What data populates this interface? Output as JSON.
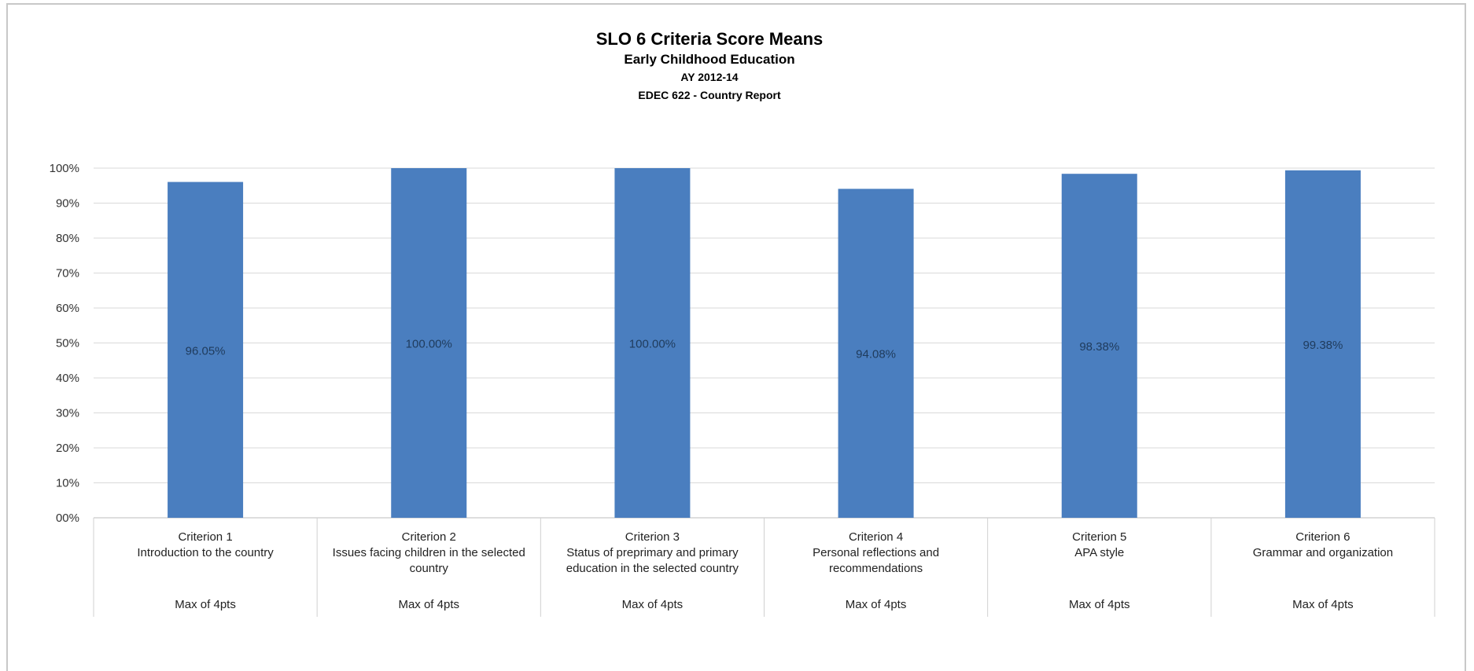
{
  "chart_data": {
    "type": "bar",
    "title": "SLO 6 Criteria Score Means",
    "subtitles": [
      "Early Childhood Education",
      "AY 2012-14",
      "EDEC 622 - Country Report"
    ],
    "ylim": [
      0,
      100
    ],
    "y_ticks": [
      "00%",
      "10%",
      "20%",
      "30%",
      "40%",
      "50%",
      "60%",
      "70%",
      "80%",
      "90%",
      "100%"
    ],
    "grid": true,
    "bar_color": "#4a7ebf",
    "categories": [
      {
        "criterion": "Criterion 1",
        "description": "Introduction to the country",
        "max": "Max of 4pts"
      },
      {
        "criterion": "Criterion 2",
        "description": "Issues facing children in the selected country",
        "max": "Max of 4pts"
      },
      {
        "criterion": "Criterion 3",
        "description": "Status of preprimary and primary education in the selected country",
        "max": "Max of 4pts"
      },
      {
        "criterion": "Criterion 4",
        "description": "Personal reflections and recommendations",
        "max": "Max of 4pts"
      },
      {
        "criterion": "Criterion 5",
        "description": "APA style",
        "max": "Max of 4pts"
      },
      {
        "criterion": "Criterion 6",
        "description": "Grammar and organization",
        "max": "Max of 4pts"
      }
    ],
    "values": [
      96.05,
      100.0,
      100.0,
      94.08,
      98.38,
      99.38
    ],
    "data_labels": [
      "96.05%",
      "100.00%",
      "100.00%",
      "94.08%",
      "98.38%",
      "99.38%"
    ]
  }
}
